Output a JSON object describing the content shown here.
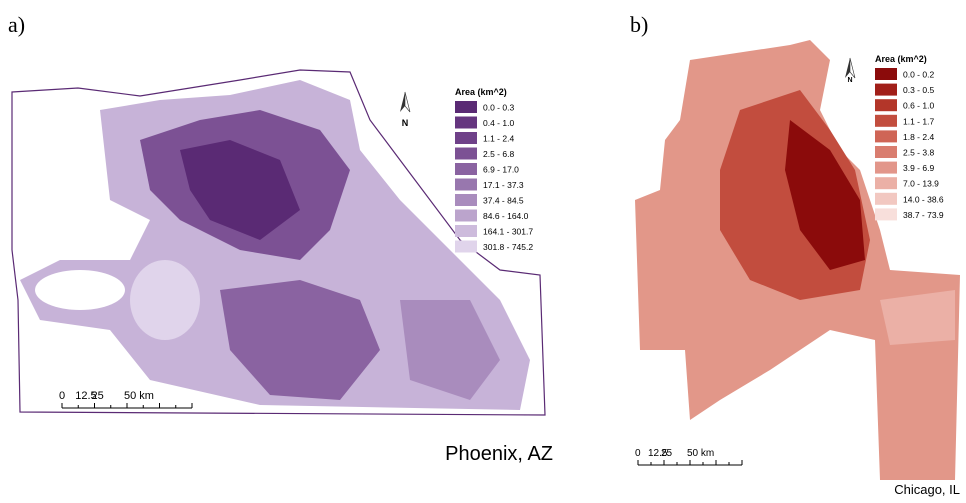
{
  "panels": [
    {
      "label": "a)",
      "north": "N",
      "caption": "Phoenix, AZ",
      "legend": {
        "title": "Area (km^2)",
        "items": [
          {
            "label": "0.0 - 0.3",
            "color": "#5a2a74"
          },
          {
            "label": "0.4 - 1.0",
            "color": "#65357f"
          },
          {
            "label": "1.1 - 2.4",
            "color": "#6f4189"
          },
          {
            "label": "2.5 - 6.8",
            "color": "#7c5194"
          },
          {
            "label": "6.9 - 17.0",
            "color": "#8a63a1"
          },
          {
            "label": "17.1 - 37.3",
            "color": "#9877ae"
          },
          {
            "label": "37.4 - 84.5",
            "color": "#a98cbd"
          },
          {
            "label": "84.6 - 164.0",
            "color": "#bba4cc"
          },
          {
            "label": "164.1 - 301.7",
            "color": "#cdbbdc"
          },
          {
            "label": "301.8 - 745.2",
            "color": "#e0d4eb"
          }
        ]
      },
      "scale": [
        "0",
        "12.5",
        "25",
        "50 km"
      ]
    },
    {
      "label": "b)",
      "north": "N",
      "caption": "Chicago, IL",
      "legend": {
        "title": "Area (km^2)",
        "items": [
          {
            "label": "0.0 - 0.2",
            "color": "#8b0b0b"
          },
          {
            "label": "0.3 - 0.5",
            "color": "#a11f19"
          },
          {
            "label": "0.6 - 1.0",
            "color": "#b33629"
          },
          {
            "label": "1.1 - 1.7",
            "color": "#c24d3e"
          },
          {
            "label": "1.8 - 2.4",
            "color": "#cf6556"
          },
          {
            "label": "2.5 - 3.8",
            "color": "#d97d6f"
          },
          {
            "label": "3.9 - 6.9",
            "color": "#e2968a"
          },
          {
            "label": "7.0 - 13.9",
            "color": "#ebb0a6"
          },
          {
            "label": "14.0 - 38.6",
            "color": "#f2c8c1"
          },
          {
            "label": "38.7 - 73.9",
            "color": "#f8dfdb"
          }
        ]
      },
      "scale": [
        "0",
        "12.5",
        "25",
        "50 km"
      ]
    }
  ]
}
